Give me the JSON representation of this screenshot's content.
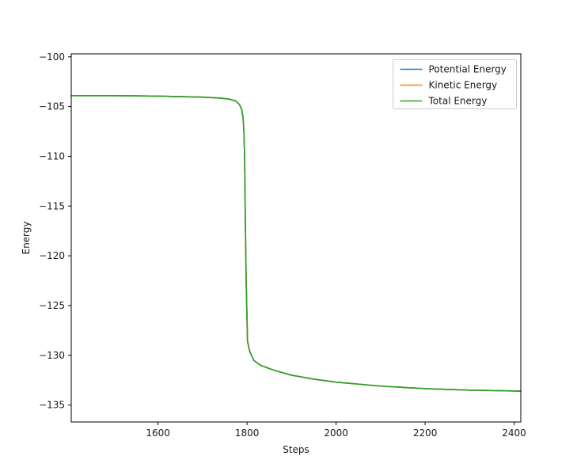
{
  "figure": {
    "background": "#ffffff"
  },
  "chart_data": {
    "type": "line",
    "title": "",
    "xlabel": "Steps",
    "ylabel": "Energy",
    "xlim": [
      1405,
      2415
    ],
    "ylim": [
      -136.7,
      -99.7
    ],
    "grid": false,
    "legend_position": "upper right",
    "xticks": [
      {
        "value": 1600,
        "label": "1600"
      },
      {
        "value": 1800,
        "label": "1800"
      },
      {
        "value": 2000,
        "label": "2000"
      },
      {
        "value": 2200,
        "label": "2200"
      },
      {
        "value": 2400,
        "label": "2400"
      }
    ],
    "yticks": [
      {
        "value": -100,
        "label": "−100"
      },
      {
        "value": -105,
        "label": "−105"
      },
      {
        "value": -110,
        "label": "−110"
      },
      {
        "value": -115,
        "label": "−115"
      },
      {
        "value": -120,
        "label": "−120"
      },
      {
        "value": -125,
        "label": "−125"
      },
      {
        "value": -130,
        "label": "−130"
      },
      {
        "value": -135,
        "label": "−135"
      }
    ],
    "x": [
      1405,
      1500,
      1600,
      1650,
      1700,
      1740,
      1760,
      1775,
      1783,
      1788,
      1791,
      1793,
      1794.5,
      1796,
      1798,
      1801,
      1806,
      1815,
      1830,
      1860,
      1900,
      1950,
      2000,
      2100,
      2200,
      2300,
      2415
    ],
    "series": [
      {
        "name": "Potential Energy",
        "color": "#1f77b4",
        "values": [
          -103.9,
          -103.9,
          -103.95,
          -104.0,
          -104.05,
          -104.15,
          -104.25,
          -104.45,
          -104.8,
          -105.3,
          -106.1,
          -107.6,
          -110.0,
          -116.0,
          -122.5,
          -128.6,
          -129.6,
          -130.5,
          -131.0,
          -131.5,
          -132.0,
          -132.4,
          -132.7,
          -133.1,
          -133.35,
          -133.5,
          -133.6
        ]
      },
      {
        "name": "Kinetic Energy",
        "color": "#ff7f0e",
        "values": [
          -103.9,
          -103.9,
          -103.95,
          -104.0,
          -104.05,
          -104.15,
          -104.25,
          -104.45,
          -104.8,
          -105.3,
          -106.1,
          -107.6,
          -110.0,
          -116.0,
          -122.5,
          -128.6,
          -129.6,
          -130.5,
          -131.0,
          -131.5,
          -132.0,
          -132.4,
          -132.7,
          -133.1,
          -133.35,
          -133.5,
          -133.6
        ]
      },
      {
        "name": "Total Energy",
        "color": "#2ca02c",
        "values": [
          -103.9,
          -103.9,
          -103.95,
          -104.0,
          -104.05,
          -104.15,
          -104.25,
          -104.45,
          -104.8,
          -105.3,
          -106.1,
          -107.6,
          -110.0,
          -116.0,
          -122.5,
          -128.6,
          -129.6,
          -130.5,
          -131.0,
          -131.5,
          -132.0,
          -132.4,
          -132.7,
          -133.1,
          -133.35,
          -133.5,
          -133.6
        ]
      }
    ]
  }
}
